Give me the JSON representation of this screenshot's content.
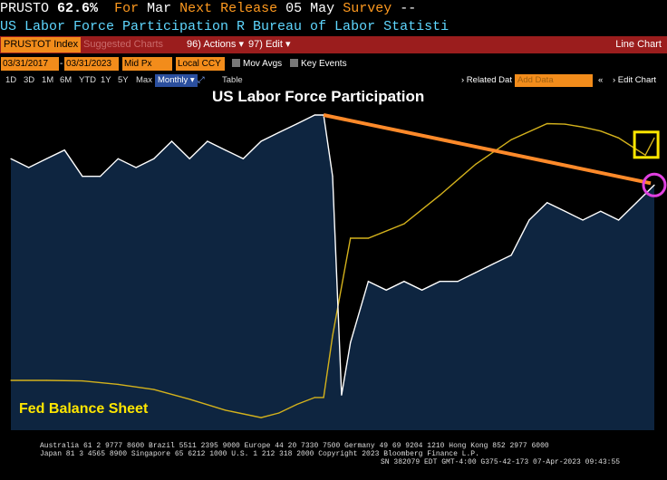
{
  "header": {
    "ticker": "PRUSTO",
    "last_value": "62.6%",
    "for_label": "For",
    "period": "Mar",
    "next_release_label": "Next Release",
    "next_release_date": "05 May",
    "survey_label": "Survey",
    "survey_value": "--",
    "subtitle": "US Labor Force Participation R Bureau of Labor Statisti"
  },
  "toolbar": {
    "ticker_field": "PRUSTOT Index",
    "suggested_label": "Suggested Charts",
    "actions_label": "96) Actions ▾",
    "edit_label": "97) Edit ▾",
    "chart_type": "Line Chart"
  },
  "date_bar": {
    "start_date": "03/31/2017",
    "end_date": "03/31/2023",
    "field": "Mid Px",
    "currency": "Local CCY",
    "mov_avgs_label": "Mov Avgs",
    "key_events_label": "Key Events"
  },
  "range_bar": {
    "ranges": [
      "1D",
      "3D",
      "1M",
      "6M",
      "YTD",
      "1Y",
      "5Y",
      "Max"
    ],
    "frequency": "Monthly ▾",
    "table_label": "Table",
    "related_data_label": "› Related Dat",
    "add_data_placeholder": "Add Data",
    "edit_chart_label": "› Edit Chart",
    "collapse_label": "«"
  },
  "annotations": {
    "title": "US Labor Force Participation",
    "fed_label": "Fed Balance Sheet"
  },
  "footer": {
    "line1": "Australia 61 2 9777 8600 Brazil 5511 2395 9000 Europe 44 20 7330 7500 Germany 49 69 9204 1210 Hong Kong 852 2977 6000",
    "line2": "Japan 81 3 4565 8900      Singapore 65 6212 1000     U.S. 1 212 318 2000       Copyright 2023 Bloomberg Finance L.P.",
    "line3": "SN 382079 EDT  GMT-4:00 G375-42-173 07-Apr-2023 09:43:55"
  },
  "colors": {
    "ticker_orange": "#f28c1b",
    "header_blue": "#5fd7ff",
    "red_bar": "#9b1d1d",
    "area_fill": "#0e2540",
    "participation_line": "#ffffff",
    "balance_sheet_line": "#d4b21c",
    "trend_arrow": "#ff8a2a",
    "box_highlight": "#ffe600",
    "circle_highlight": "#e040e0"
  },
  "chart_data": {
    "type": "line",
    "series": [
      {
        "name": "PRUSTOT Index",
        "x": [
          "2017-03",
          "2017-05",
          "2017-07",
          "2017-09",
          "2017-11",
          "2018-01",
          "2018-03",
          "2018-05",
          "2018-07",
          "2018-09",
          "2018-11",
          "2019-01",
          "2019-03",
          "2019-05",
          "2019-07",
          "2019-09",
          "2019-11",
          "2020-01",
          "2020-02",
          "2020-03",
          "2020-04",
          "2020-05",
          "2020-07",
          "2020-09",
          "2020-11",
          "2021-01",
          "2021-03",
          "2021-05",
          "2021-07",
          "2021-09",
          "2021-11",
          "2022-01",
          "2022-03",
          "2022-05",
          "2022-07",
          "2022-09",
          "2022-11",
          "2023-01",
          "2023-03"
        ],
        "values": [
          62.9,
          62.8,
          62.9,
          63.0,
          62.7,
          62.7,
          62.9,
          62.8,
          62.9,
          63.1,
          62.9,
          63.1,
          63.0,
          62.9,
          63.1,
          63.2,
          63.3,
          63.4,
          63.4,
          62.7,
          60.2,
          60.8,
          61.5,
          61.4,
          61.5,
          61.4,
          61.5,
          61.5,
          61.6,
          61.7,
          61.8,
          62.2,
          62.4,
          62.3,
          62.2,
          62.3,
          62.2,
          62.4,
          62.6
        ]
      },
      {
        "name": "Fed Balance Sheet",
        "x": [
          "2017-03",
          "2017-07",
          "2017-11",
          "2018-03",
          "2018-07",
          "2018-11",
          "2019-03",
          "2019-07",
          "2019-09",
          "2019-11",
          "2020-01",
          "2020-02",
          "2020-03",
          "2020-05",
          "2020-07",
          "2020-11",
          "2021-03",
          "2021-07",
          "2021-11",
          "2022-03",
          "2022-05",
          "2022-07",
          "2022-09",
          "2022-11",
          "2023-01",
          "2023-02",
          "2023-03"
        ],
        "values": [
          4.47,
          4.47,
          4.46,
          4.4,
          4.31,
          4.14,
          3.95,
          3.82,
          3.9,
          4.05,
          4.17,
          4.17,
          5.25,
          6.95,
          6.95,
          7.2,
          7.7,
          8.24,
          8.67,
          8.95,
          8.94,
          8.89,
          8.82,
          8.7,
          8.5,
          8.4,
          8.7
        ]
      }
    ],
    "annotations": [
      "US Labor Force Participation",
      "Fed Balance Sheet"
    ],
    "xlim": [
      "2017-03",
      "2023-03"
    ],
    "grid": false
  }
}
